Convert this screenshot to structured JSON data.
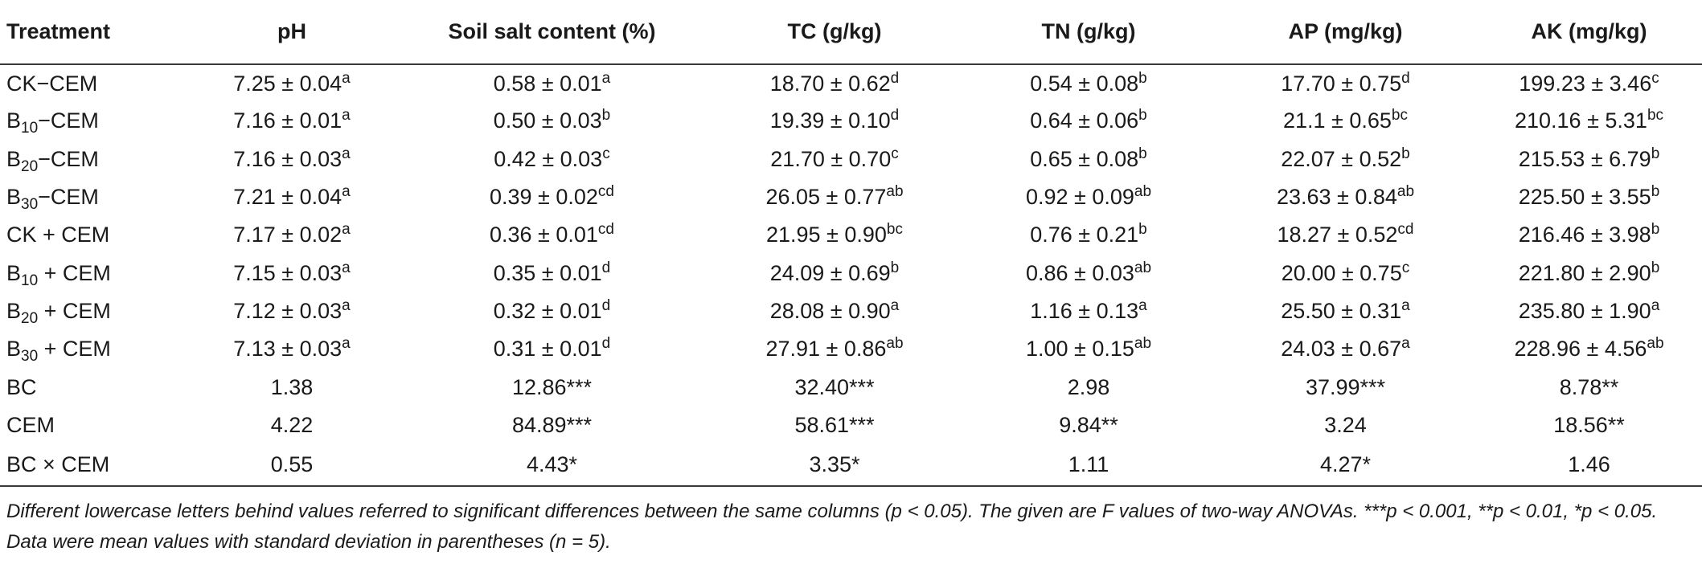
{
  "table": {
    "headers": [
      "Treatment",
      "pH",
      "Soil salt content (%)",
      "TC (g/kg)",
      "TN (g/kg)",
      "AP (mg/kg)",
      "AK (mg/kg)"
    ],
    "rows": [
      {
        "treatment": {
          "pre": "CK",
          "sub": "",
          "post": "−CEM"
        },
        "cells": [
          [
            "7.25 ± 0.04",
            "a"
          ],
          [
            "0.58 ± 0.01",
            "a"
          ],
          [
            "18.70 ± 0.62",
            "d"
          ],
          [
            "0.54 ± 0.08",
            "b"
          ],
          [
            "17.70 ± 0.75",
            "d"
          ],
          [
            "199.23 ± 3.46",
            "c"
          ]
        ]
      },
      {
        "treatment": {
          "pre": "B",
          "sub": "10",
          "post": "−CEM"
        },
        "cells": [
          [
            "7.16 ± 0.01",
            "a"
          ],
          [
            "0.50 ± 0.03",
            "b"
          ],
          [
            "19.39 ± 0.10",
            "d"
          ],
          [
            "0.64 ± 0.06",
            "b"
          ],
          [
            "21.1 ± 0.65",
            "bc"
          ],
          [
            "210.16 ± 5.31",
            "bc"
          ]
        ]
      },
      {
        "treatment": {
          "pre": "B",
          "sub": "20",
          "post": "−CEM"
        },
        "cells": [
          [
            "7.16 ± 0.03",
            "a"
          ],
          [
            "0.42 ± 0.03",
            "c"
          ],
          [
            "21.70 ± 0.70",
            "c"
          ],
          [
            "0.65 ± 0.08",
            "b"
          ],
          [
            "22.07 ± 0.52",
            "b"
          ],
          [
            "215.53 ± 6.79",
            "b"
          ]
        ]
      },
      {
        "treatment": {
          "pre": "B",
          "sub": "30",
          "post": "−CEM"
        },
        "cells": [
          [
            "7.21 ± 0.04",
            "a"
          ],
          [
            "0.39 ± 0.02",
            "cd"
          ],
          [
            "26.05 ± 0.77",
            "ab"
          ],
          [
            "0.92 ± 0.09",
            "ab"
          ],
          [
            "23.63 ± 0.84",
            "ab"
          ],
          [
            "225.50 ± 3.55",
            "b"
          ]
        ]
      },
      {
        "treatment": {
          "pre": "CK",
          "sub": "",
          "post": " + CEM"
        },
        "cells": [
          [
            "7.17 ± 0.02",
            "a"
          ],
          [
            "0.36 ± 0.01",
            "cd"
          ],
          [
            "21.95 ± 0.90",
            "bc"
          ],
          [
            "0.76 ± 0.21",
            "b"
          ],
          [
            "18.27 ± 0.52",
            "cd"
          ],
          [
            "216.46 ± 3.98",
            "b"
          ]
        ]
      },
      {
        "treatment": {
          "pre": "B",
          "sub": "10",
          "post": " + CEM"
        },
        "cells": [
          [
            "7.15 ± 0.03",
            "a"
          ],
          [
            "0.35 ± 0.01",
            "d"
          ],
          [
            "24.09 ± 0.69",
            "b"
          ],
          [
            "0.86 ± 0.03",
            "ab"
          ],
          [
            "20.00 ± 0.75",
            "c"
          ],
          [
            "221.80 ± 2.90",
            "b"
          ]
        ]
      },
      {
        "treatment": {
          "pre": "B",
          "sub": "20",
          "post": " + CEM"
        },
        "cells": [
          [
            "7.12 ± 0.03",
            "a"
          ],
          [
            "0.32 ± 0.01",
            "d"
          ],
          [
            "28.08 ± 0.90",
            "a"
          ],
          [
            "1.16 ± 0.13",
            "a"
          ],
          [
            "25.50 ± 0.31",
            "a"
          ],
          [
            "235.80 ± 1.90",
            "a"
          ]
        ]
      },
      {
        "treatment": {
          "pre": "B",
          "sub": "30",
          "post": " + CEM"
        },
        "cells": [
          [
            "7.13 ± 0.03",
            "a"
          ],
          [
            "0.31 ± 0.01",
            "d"
          ],
          [
            "27.91 ± 0.86",
            "ab"
          ],
          [
            "1.00 ± 0.15",
            "ab"
          ],
          [
            "24.03 ± 0.67",
            "a"
          ],
          [
            "228.96 ± 4.56",
            "ab"
          ]
        ]
      },
      {
        "treatment": {
          "pre": "BC",
          "sub": "",
          "post": ""
        },
        "cells": [
          [
            "1.38",
            ""
          ],
          [
            "12.86***",
            ""
          ],
          [
            "32.40***",
            ""
          ],
          [
            "2.98",
            ""
          ],
          [
            "37.99***",
            ""
          ],
          [
            "8.78**",
            ""
          ]
        ]
      },
      {
        "treatment": {
          "pre": "CEM",
          "sub": "",
          "post": ""
        },
        "cells": [
          [
            "4.22",
            ""
          ],
          [
            "84.89***",
            ""
          ],
          [
            "58.61***",
            ""
          ],
          [
            "9.84**",
            ""
          ],
          [
            "3.24",
            ""
          ],
          [
            "18.56**",
            ""
          ]
        ]
      },
      {
        "treatment": {
          "pre": "BC × CEM",
          "sub": "",
          "post": ""
        },
        "cells": [
          [
            "0.55",
            ""
          ],
          [
            "4.43*",
            ""
          ],
          [
            "3.35*",
            ""
          ],
          [
            "1.11",
            ""
          ],
          [
            "4.27*",
            ""
          ],
          [
            "1.46",
            ""
          ]
        ]
      }
    ]
  },
  "footnote": "Different lowercase letters behind values referred to significant differences between the same columns (p < 0.05). The given are F values of two-way ANOVAs. ***p < 0.001, **p < 0.01, *p < 0.05. Data were mean values with standard deviation in parentheses (n = 5)."
}
